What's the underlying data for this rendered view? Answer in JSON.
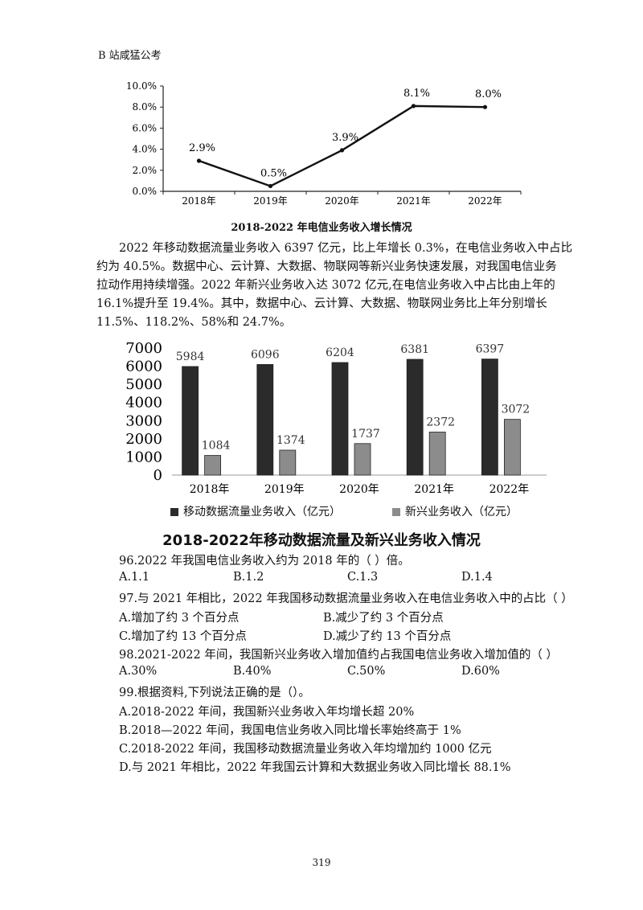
{
  "header": "B 站咸猛公考",
  "line_chart": {
    "chart_data": {
      "type": "line",
      "title": "2018-2022 年电信业务收入增长情况",
      "categories": [
        "2018年",
        "2019年",
        "2020年",
        "2021年",
        "2022年"
      ],
      "values": [
        2.9,
        0.5,
        3.9,
        8.1,
        8.0
      ],
      "data_labels": [
        "2.9%",
        "0.5%",
        "3.9%",
        "8.1%",
        "8.0%"
      ],
      "yticks": [
        "0.0%",
        "2.0%",
        "4.0%",
        "6.0%",
        "8.0%",
        "10.0%"
      ],
      "ylim": [
        0,
        10
      ],
      "line_color": "#111111"
    }
  },
  "paragraph": [
    "2022 年移动数据流量业务收入 6397 亿元，比上年增长 0.3%，在电信业务收入中占比",
    "约为 40.5%。数据中心、云计算、大数据、物联网等新兴业务快速发展，对我国电信业务",
    "拉动作用持续增强。2022 年新兴业务收入达  3072 亿元,在电信业务收入中占比由上年的",
    "16.1%提升至 19.4%。其中，数据中心、云计算、大数据、物联网业务比上年分别增长",
    "11.5%、118.2%、58%和 24.7%。"
  ],
  "bar_chart": {
    "chart_data": {
      "type": "bar",
      "title": "2018-2022年移动数据流量及新兴业务收入情况",
      "categories": [
        "2018年",
        "2019年",
        "2020年",
        "2021年",
        "2022年"
      ],
      "series": [
        {
          "name": "移动数据流量业务收入（亿元）",
          "values": [
            5984,
            6096,
            6204,
            6381,
            6397
          ],
          "color": "#2b2b2b"
        },
        {
          "name": "新兴业务收入（亿元）",
          "values": [
            1084,
            1374,
            1737,
            2372,
            3072
          ],
          "color": "#8c8c8c"
        }
      ],
      "yticks": [
        "0",
        "1000",
        "2000",
        "3000",
        "4000",
        "5000",
        "6000",
        "7000"
      ],
      "ylim": [
        0,
        7000
      ]
    }
  },
  "questions": [
    {
      "stem": "96.2022 年我国电信业务收入约为 2018 年的（ ）倍。",
      "options": [
        "A.1.1",
        "B.1.2",
        "C.1.3",
        "D.1.4"
      ]
    },
    {
      "stem": "97.与 2021 年相比，2022 年我国移动数据流量业务收入在电信业务收入中的占比（ ）",
      "options": [
        "A.增加了约 3 个百分点",
        "B.减少了约 3 个百分点",
        "C.增加了约 13 个百分点",
        "D.减少了约 13 个百分点"
      ]
    },
    {
      "stem": "98.2021-2022 年间，我国新兴业务收入增加值约占我国电信业务收入增加值的（ ）",
      "options": [
        "A.30%",
        "B.40%",
        "C.50%",
        "D.60%"
      ]
    },
    {
      "stem": "99.根据资料,下列说法正确的是（）。",
      "options": [
        "A.2018-2022 年间，我国新兴业务收入年均增长超 20%",
        "B.2018—2022 年间，我国电信业务收入同比增长率始终高于 1%",
        "C.2018-2022 年间，我国移动数据流量业务收入年均增加约 1000 亿元",
        "D.与 2021 年相比，2022 年我国云计算和大数据业务收入同比增长 88.1%"
      ]
    }
  ],
  "page_number": "319"
}
